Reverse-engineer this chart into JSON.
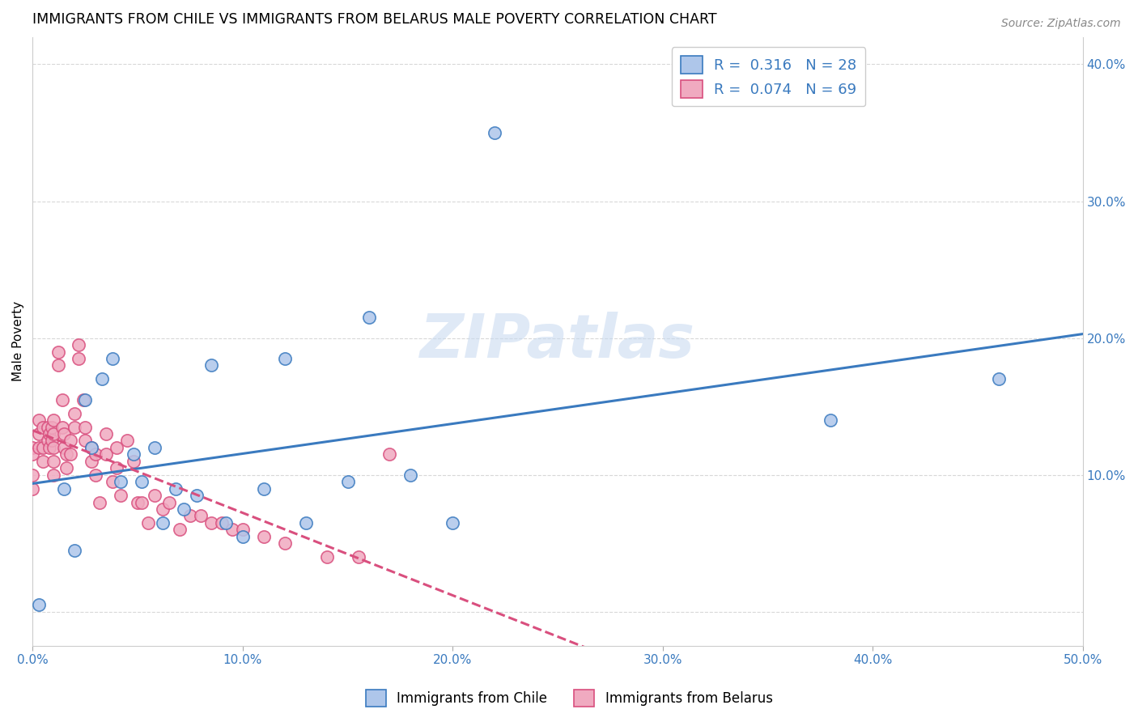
{
  "title": "IMMIGRANTS FROM CHILE VS IMMIGRANTS FROM BELARUS MALE POVERTY CORRELATION CHART",
  "source": "Source: ZipAtlas.com",
  "ylabel": "Male Poverty",
  "watermark": "ZIPatlas",
  "xlim": [
    0,
    0.5
  ],
  "ylim": [
    -0.025,
    0.42
  ],
  "xticks": [
    0.0,
    0.1,
    0.2,
    0.3,
    0.4,
    0.5
  ],
  "xtick_labels": [
    "0.0%",
    "10.0%",
    "20.0%",
    "30.0%",
    "40.0%",
    "50.0%"
  ],
  "yticks": [
    0.0,
    0.1,
    0.2,
    0.3,
    0.4
  ],
  "ytick_labels": [
    "",
    "10.0%",
    "20.0%",
    "30.0%",
    "40.0%"
  ],
  "legend_R_chile": "0.316",
  "legend_N_chile": "28",
  "legend_R_belarus": "0.074",
  "legend_N_belarus": "69",
  "chile_color": "#aec6ea",
  "belarus_color": "#f0aac0",
  "line_chile_color": "#3a7abf",
  "line_belarus_color": "#d94f7e",
  "background_color": "#ffffff",
  "grid_color": "#d8d8d8",
  "chile_x": [
    0.003,
    0.015,
    0.02,
    0.025,
    0.028,
    0.033,
    0.038,
    0.042,
    0.048,
    0.052,
    0.058,
    0.062,
    0.068,
    0.072,
    0.078,
    0.085,
    0.092,
    0.1,
    0.11,
    0.12,
    0.13,
    0.15,
    0.16,
    0.18,
    0.2,
    0.22,
    0.38,
    0.46
  ],
  "chile_y": [
    0.005,
    0.09,
    0.045,
    0.155,
    0.12,
    0.17,
    0.185,
    0.095,
    0.115,
    0.095,
    0.12,
    0.065,
    0.09,
    0.075,
    0.085,
    0.18,
    0.065,
    0.055,
    0.09,
    0.185,
    0.065,
    0.095,
    0.215,
    0.1,
    0.065,
    0.35,
    0.14,
    0.17
  ],
  "belarus_x": [
    0.0,
    0.0,
    0.0,
    0.0,
    0.003,
    0.003,
    0.003,
    0.005,
    0.005,
    0.005,
    0.007,
    0.007,
    0.008,
    0.008,
    0.009,
    0.009,
    0.01,
    0.01,
    0.01,
    0.01,
    0.01,
    0.012,
    0.012,
    0.014,
    0.014,
    0.015,
    0.015,
    0.016,
    0.016,
    0.018,
    0.018,
    0.02,
    0.02,
    0.022,
    0.022,
    0.024,
    0.025,
    0.025,
    0.028,
    0.028,
    0.03,
    0.03,
    0.032,
    0.035,
    0.035,
    0.038,
    0.04,
    0.04,
    0.042,
    0.045,
    0.048,
    0.05,
    0.052,
    0.055,
    0.058,
    0.062,
    0.065,
    0.07,
    0.075,
    0.08,
    0.085,
    0.09,
    0.095,
    0.1,
    0.11,
    0.12,
    0.14,
    0.155,
    0.17
  ],
  "belarus_y": [
    0.12,
    0.115,
    0.1,
    0.09,
    0.14,
    0.13,
    0.12,
    0.135,
    0.12,
    0.11,
    0.135,
    0.125,
    0.13,
    0.12,
    0.135,
    0.125,
    0.14,
    0.13,
    0.12,
    0.11,
    0.1,
    0.19,
    0.18,
    0.155,
    0.135,
    0.13,
    0.12,
    0.115,
    0.105,
    0.125,
    0.115,
    0.145,
    0.135,
    0.195,
    0.185,
    0.155,
    0.135,
    0.125,
    0.12,
    0.11,
    0.115,
    0.1,
    0.08,
    0.13,
    0.115,
    0.095,
    0.12,
    0.105,
    0.085,
    0.125,
    0.11,
    0.08,
    0.08,
    0.065,
    0.085,
    0.075,
    0.08,
    0.06,
    0.07,
    0.07,
    0.065,
    0.065,
    0.06,
    0.06,
    0.055,
    0.05,
    0.04,
    0.04,
    0.115
  ],
  "legend_fontsize": 13,
  "title_fontsize": 12.5,
  "axis_label_fontsize": 11,
  "tick_fontsize": 11,
  "marker_size": 11
}
